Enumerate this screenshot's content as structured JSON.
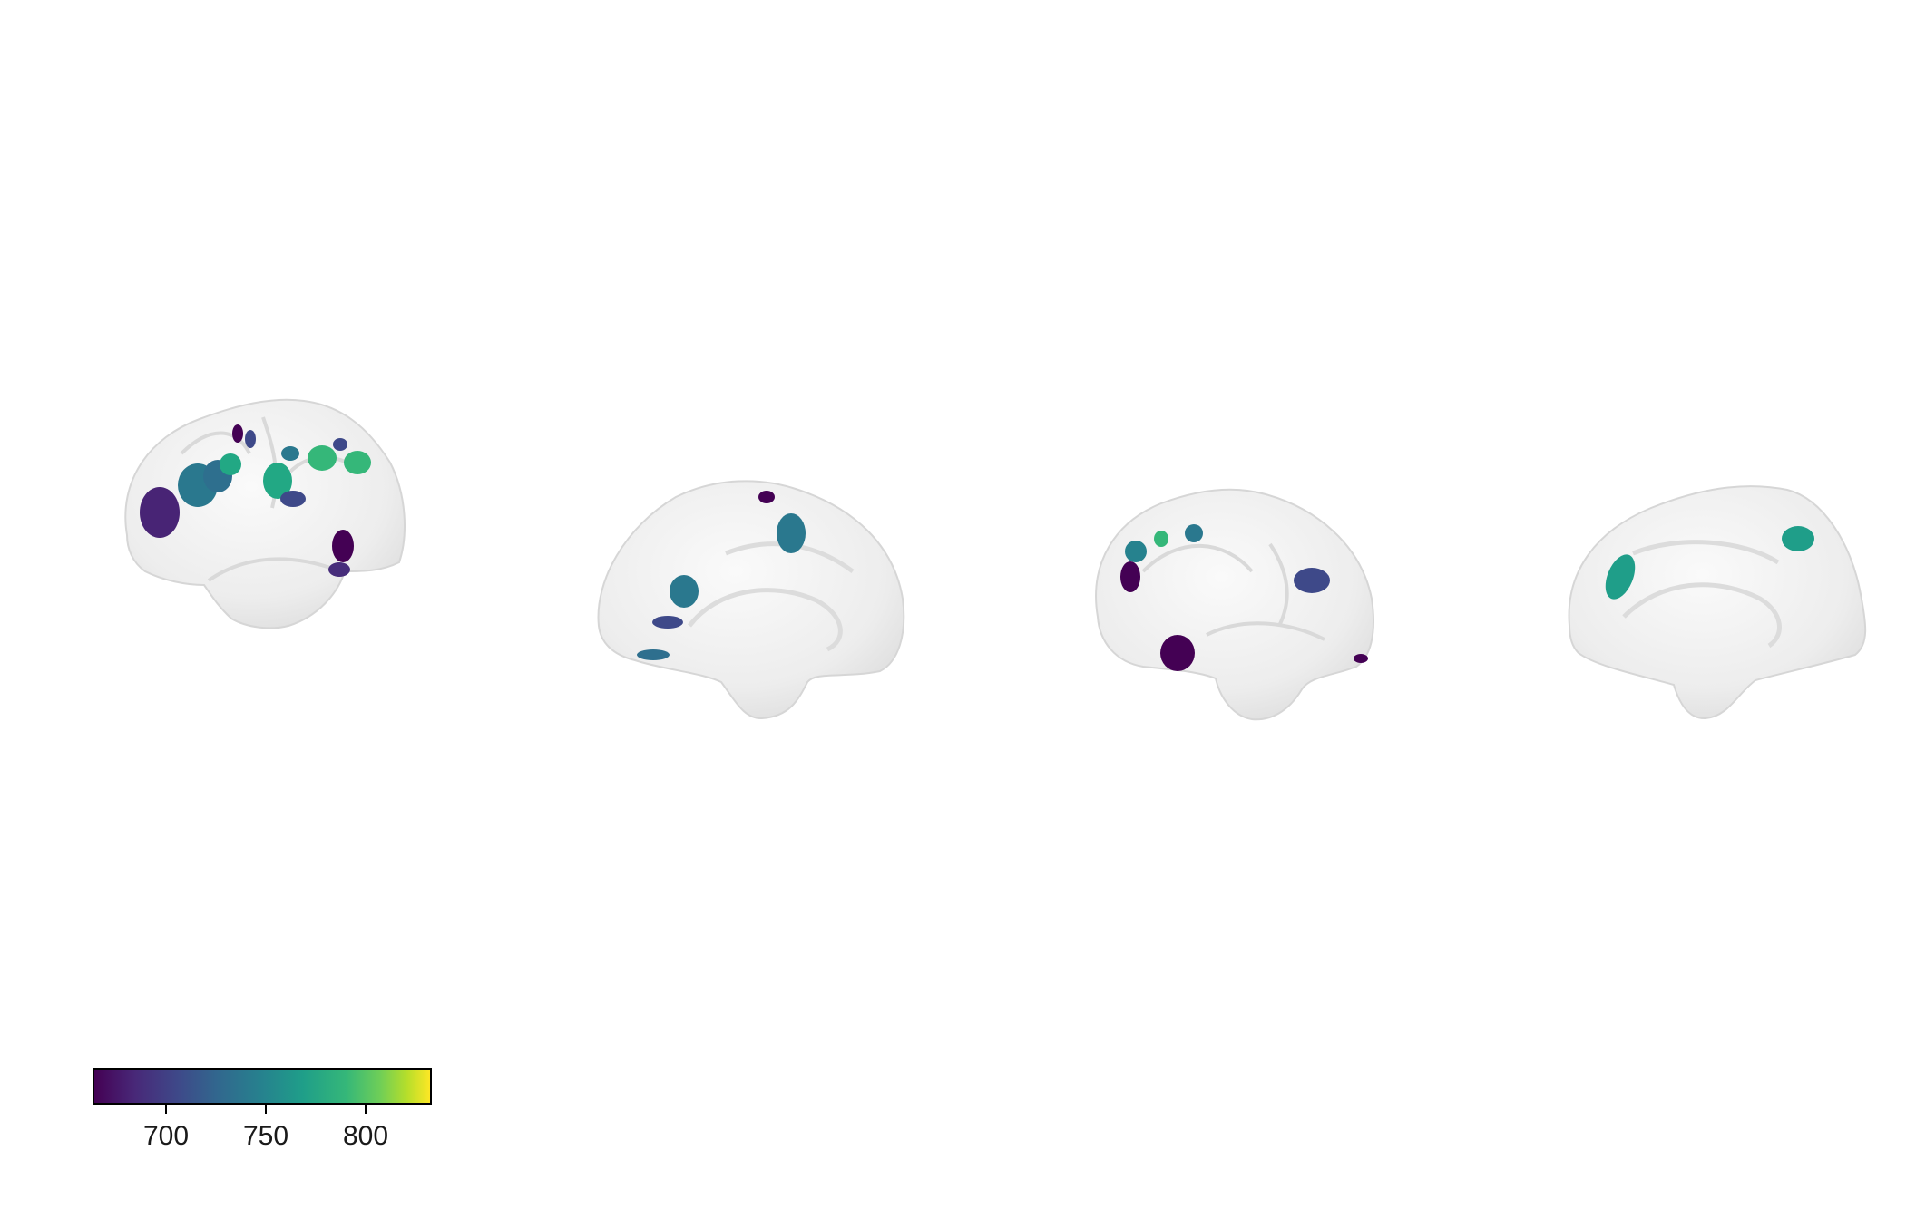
{
  "figure": {
    "views": [
      {
        "hemisphere": "left",
        "view": "lateral"
      },
      {
        "hemisphere": "left",
        "view": "medial"
      },
      {
        "hemisphere": "right",
        "view": "lateral"
      },
      {
        "hemisphere": "right",
        "view": "medial"
      }
    ],
    "surface_color": "#ececec"
  },
  "colorbar": {
    "colormap": "viridis",
    "range": [
      660,
      835
    ],
    "ticks": [
      700,
      750,
      800
    ],
    "tick_labels": [
      "700",
      "750",
      "800"
    ],
    "colors": [
      "#440154",
      "#3e4989",
      "#26828e",
      "#35b779",
      "#fde725"
    ]
  }
}
